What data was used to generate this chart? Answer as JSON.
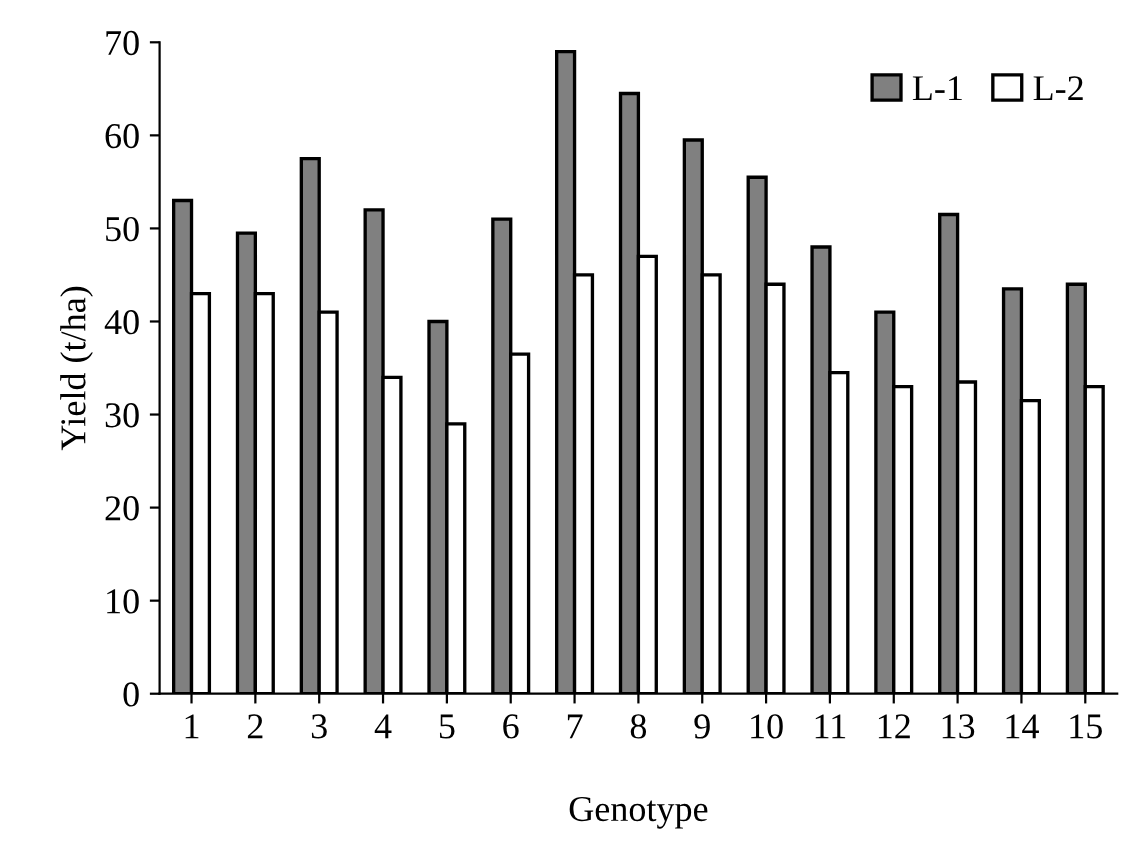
{
  "chart_data": {
    "type": "bar",
    "xlabel": "Genotype",
    "ylabel": "Yield (t/ha)",
    "categories": [
      "1",
      "2",
      "3",
      "4",
      "5",
      "6",
      "7",
      "8",
      "9",
      "10",
      "11",
      "12",
      "13",
      "14",
      "15"
    ],
    "series": [
      {
        "name": "L-1",
        "color": "#808080",
        "values": [
          53,
          49.5,
          57.5,
          52,
          40,
          51,
          69,
          64.5,
          59.5,
          55.5,
          48,
          41,
          51.5,
          43.5,
          44
        ]
      },
      {
        "name": "L-2",
        "color": "#ffffff",
        "values": [
          43,
          43,
          41,
          34,
          29,
          36.5,
          45,
          47,
          45,
          44,
          34.5,
          33,
          33.5,
          31.5,
          33
        ]
      }
    ],
    "ylim": [
      0,
      70
    ],
    "yticks": [
      0,
      10,
      20,
      30,
      40,
      50,
      60,
      70
    ],
    "grid": false,
    "legend": "top right"
  }
}
